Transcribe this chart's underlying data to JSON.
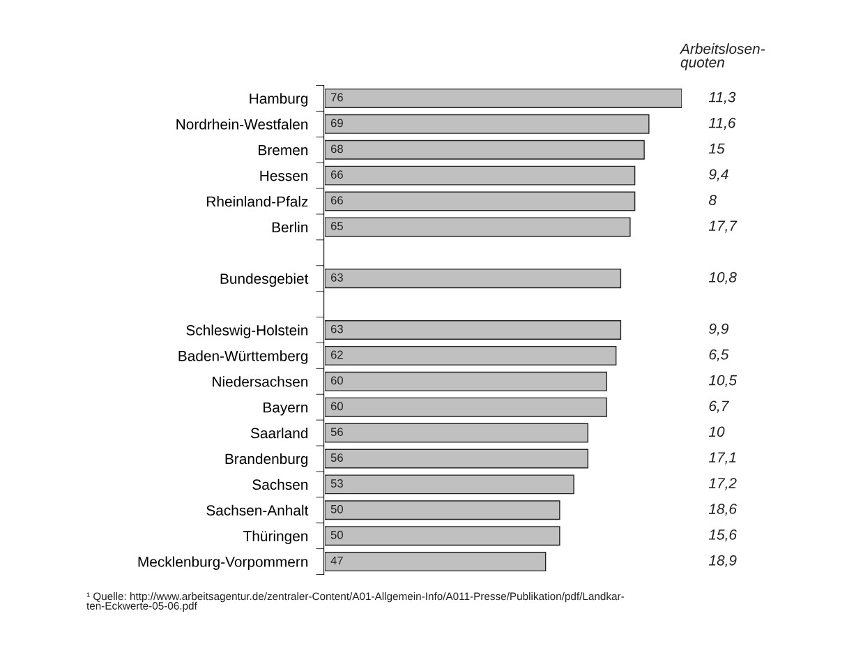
{
  "chart_data": {
    "type": "bar",
    "orientation": "horizontal",
    "data_labels": true,
    "color": "#c0c0c0",
    "categories": [
      "Hamburg",
      "Nordrhein-Westfalen",
      "Bremen",
      "Hessen",
      "Rheinland-Pfalz",
      "Berlin",
      null,
      "Bundesgebiet",
      null,
      "Schleswig-Holstein",
      "Baden-Württemberg",
      "Niedersachsen",
      "Bayern",
      "Saarland",
      "Brandenburg",
      "Sachsen",
      "Sachsen-Anhalt",
      "Thüringen",
      "Mecklenburg-Vorpommern"
    ],
    "values": [
      76,
      69,
      68,
      66,
      66,
      65,
      null,
      63,
      null,
      63,
      62,
      60,
      60,
      56,
      56,
      53,
      50,
      50,
      47
    ],
    "annotations": [
      "Arbeitslosen-\nquoten",
      "¹ Quelle: http://www.arbeitsagentur.de/zentraler-Content/A01-Allgemein-Info/A011-Presse/Publikation/pdf/Landkar-\nten-Eckwerte-05-06.pdf",
      "11,3",
      "11,6",
      "15",
      "9,4",
      "8",
      "17,7",
      "10,8",
      "9,9",
      "6,5",
      "10,5",
      "6,7",
      "10",
      "17,1",
      "17,2",
      "18,6",
      "15,6",
      "18,9"
    ]
  }
}
